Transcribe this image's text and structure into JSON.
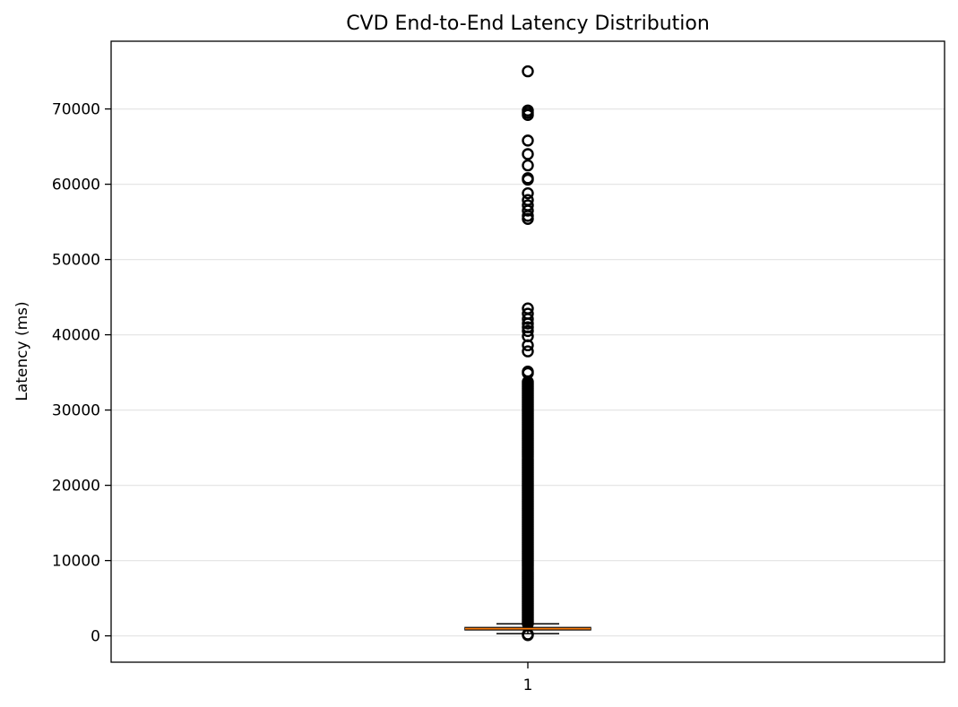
{
  "chart_data": {
    "type": "box",
    "title": "CVD End-to-End Latency Distribution",
    "xlabel": "",
    "ylabel": "Latency (ms)",
    "categories": [
      "1"
    ],
    "ylim": [
      -3500,
      79000
    ],
    "yticks": [
      0,
      10000,
      20000,
      30000,
      40000,
      50000,
      60000,
      70000
    ],
    "ytick_labels": [
      "0",
      "10000",
      "20000",
      "30000",
      "40000",
      "50000",
      "60000",
      "70000"
    ],
    "grid": "horizontal",
    "median_color": "#ff7f0e",
    "box": {
      "category": "1",
      "whisker_low": 300,
      "q1": 800,
      "median": 950,
      "q3": 1100,
      "whisker_high": 1600
    },
    "fliers": [
      200,
      100,
      75000,
      69800,
      69500,
      69200,
      65800,
      64000,
      62500,
      60800,
      60600,
      58800,
      57900,
      57200,
      56500,
      55800,
      55400,
      43500,
      42800,
      42100,
      41500,
      41000,
      40500,
      39800,
      38600,
      37800,
      35100,
      34900
    ],
    "flier_dense_range": [
      1600,
      33800
    ]
  }
}
